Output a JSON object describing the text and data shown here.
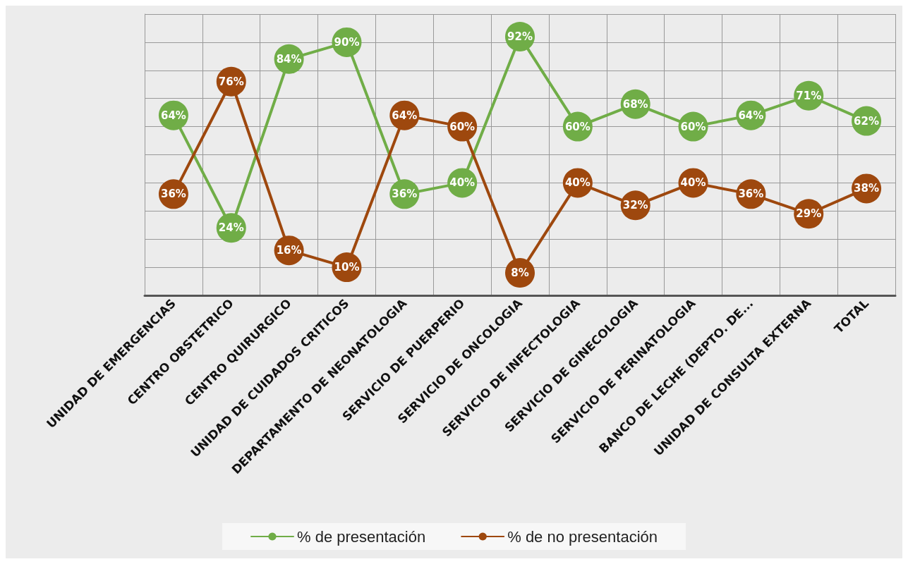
{
  "chart_data": {
    "type": "line",
    "categories": [
      "UNIDAD DE EMERGENCIAS",
      "CENTRO OBSTETRICO",
      "CENTRO QUIRURGICO",
      "UNIDAD DE CUIDADOS CRITICOS",
      "DEPARTAMENTO DE NEONATOLOGIA",
      "SERVICIO DE PUERPERIO",
      "SERVICIO DE ONCOLOGIA",
      "SERVICIO DE INFECTOLOGIA",
      "SERVICIO DE GINECOLOGIA",
      "SERVICIO DE PERINATOLOGIA",
      "BANCO DE LECHE (DEPTO. DE...",
      "UNIDAD DE CONSULTA EXTERNA",
      "TOTAL"
    ],
    "series": [
      {
        "name": "% de presentación",
        "color": "#70ad47",
        "values": [
          64,
          24,
          84,
          90,
          36,
          40,
          92,
          60,
          68,
          60,
          64,
          71,
          62
        ],
        "value_labels": [
          "64%",
          "24%",
          "84%",
          "90%",
          "36%",
          "40%",
          "92%",
          "60%",
          "68%",
          "60%",
          "64%",
          "71%",
          "62%"
        ]
      },
      {
        "name": "% de no presentación",
        "color": "#9e480e",
        "values": [
          36,
          76,
          16,
          10,
          64,
          60,
          8,
          40,
          32,
          40,
          36,
          29,
          38
        ],
        "value_labels": [
          "36%",
          "76%",
          "16%",
          "10%",
          "64%",
          "60%",
          "8%",
          "40%",
          "32%",
          "40%",
          "36%",
          "29%",
          "38%"
        ]
      }
    ],
    "ylim": [
      0,
      100
    ],
    "yticks": [
      0,
      10,
      20,
      30,
      40,
      50,
      60,
      70,
      80,
      90,
      100
    ],
    "tick_labels": "x",
    "grid": true,
    "legend": "bottom",
    "marker": "circle",
    "line_style": "solid"
  }
}
